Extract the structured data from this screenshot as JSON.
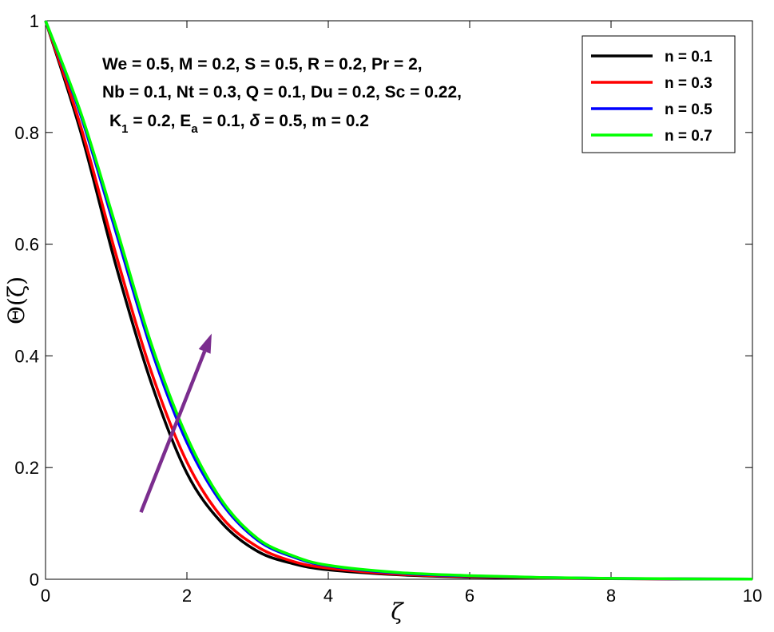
{
  "chart_data": {
    "type": "line",
    "xlabel": "ζ",
    "ylabel": "Θ(ζ)",
    "xlim": [
      0,
      10
    ],
    "ylim": [
      0,
      1
    ],
    "xticks": [
      "0",
      "2",
      "4",
      "6",
      "8",
      "10"
    ],
    "yticks": [
      "0",
      "0.2",
      "0.4",
      "0.6",
      "0.8",
      "1"
    ],
    "legend_position": "top-right",
    "grid": false,
    "annotation": {
      "line1": "We = 0.5, M = 0.2, S = 0.5, R = 0.2, Pr = 2,",
      "line2": "Nb = 0.1, Nt = 0.3, Q = 0.1, Du = 0.2, Sc = 0.22,",
      "line3": {
        "k": "K",
        "k_sub": "1",
        "k_val": " = 0.2, E",
        "e_sub": "a",
        "e_val": " = 0.1, ",
        "delta": "δ",
        "rest": " = 0.5, m = 0.2"
      }
    },
    "arrow": {
      "from": [
        1.35,
        0.12
      ],
      "to": [
        2.35,
        0.44
      ],
      "color": "#7b2d8e"
    },
    "x": [
      0,
      0.5,
      1,
      1.5,
      2,
      2.5,
      3,
      3.5,
      4,
      5,
      6,
      7,
      8,
      9,
      10
    ],
    "series": [
      {
        "name": "n = 0.1",
        "color": "#000000",
        "values": [
          1.0,
          0.8,
          0.56,
          0.35,
          0.19,
          0.1,
          0.05,
          0.028,
          0.017,
          0.008,
          0.004,
          0.002,
          0.001,
          0.0005,
          0.0003
        ]
      },
      {
        "name": "n = 0.3",
        "color": "#ff0000",
        "values": [
          1.0,
          0.81,
          0.58,
          0.37,
          0.21,
          0.11,
          0.058,
          0.032,
          0.02,
          0.009,
          0.005,
          0.0025,
          0.0012,
          0.0006,
          0.0003
        ]
      },
      {
        "name": "n = 0.5",
        "color": "#0000ff",
        "values": [
          1.0,
          0.83,
          0.62,
          0.41,
          0.245,
          0.135,
          0.07,
          0.04,
          0.024,
          0.011,
          0.006,
          0.003,
          0.0015,
          0.0007,
          0.0004
        ]
      },
      {
        "name": "n = 0.7",
        "color": "#00ff00",
        "values": [
          1.0,
          0.835,
          0.63,
          0.42,
          0.255,
          0.14,
          0.073,
          0.042,
          0.025,
          0.012,
          0.0065,
          0.0033,
          0.0016,
          0.0008,
          0.0004
        ]
      }
    ]
  }
}
